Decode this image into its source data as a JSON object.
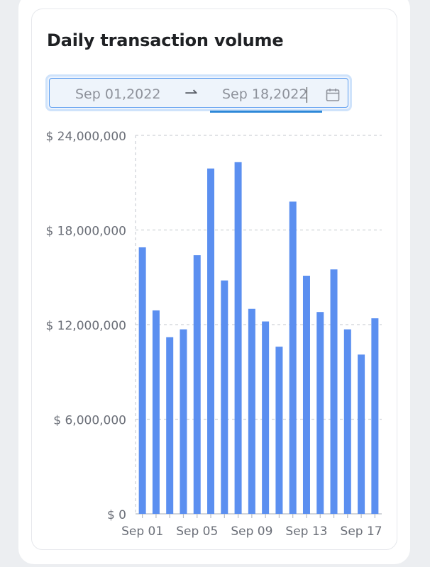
{
  "card": {
    "title": "Daily transaction volume"
  },
  "range_picker": {
    "start": "Sep 01,2022",
    "end": "Sep 18,2022",
    "separator_icon": "arrow-right-icon",
    "calendar_icon": "calendar-icon"
  },
  "colors": {
    "bar": "#5b8ff0",
    "grid": "#cfd2d8",
    "axis_text": "#6b6f78",
    "accent": "#2d88d8"
  },
  "chart_data": {
    "type": "bar",
    "categories": [
      "Sep 01",
      "Sep 02",
      "Sep 03",
      "Sep 04",
      "Sep 05",
      "Sep 06",
      "Sep 07",
      "Sep 08",
      "Sep 09",
      "Sep 10",
      "Sep 11",
      "Sep 12",
      "Sep 13",
      "Sep 14",
      "Sep 15",
      "Sep 16",
      "Sep 17",
      "Sep 18"
    ],
    "tick_labels": [
      "Sep 01",
      "Sep 05",
      "Sep 09",
      "Sep 13",
      "Sep 17"
    ],
    "values": [
      16900000,
      12900000,
      11200000,
      11700000,
      16400000,
      21900000,
      14800000,
      22300000,
      13000000,
      12200000,
      10600000,
      19800000,
      15100000,
      12800000,
      15500000,
      11700000,
      10100000,
      12400000
    ],
    "y_ticks": [
      "$ 0",
      "$ 6,000,000",
      "$ 12,000,000",
      "$ 18,000,000",
      "$ 24,000,000"
    ],
    "ylim": [
      0,
      24000000
    ],
    "grid": true,
    "title": "",
    "xlabel": "",
    "ylabel": ""
  }
}
